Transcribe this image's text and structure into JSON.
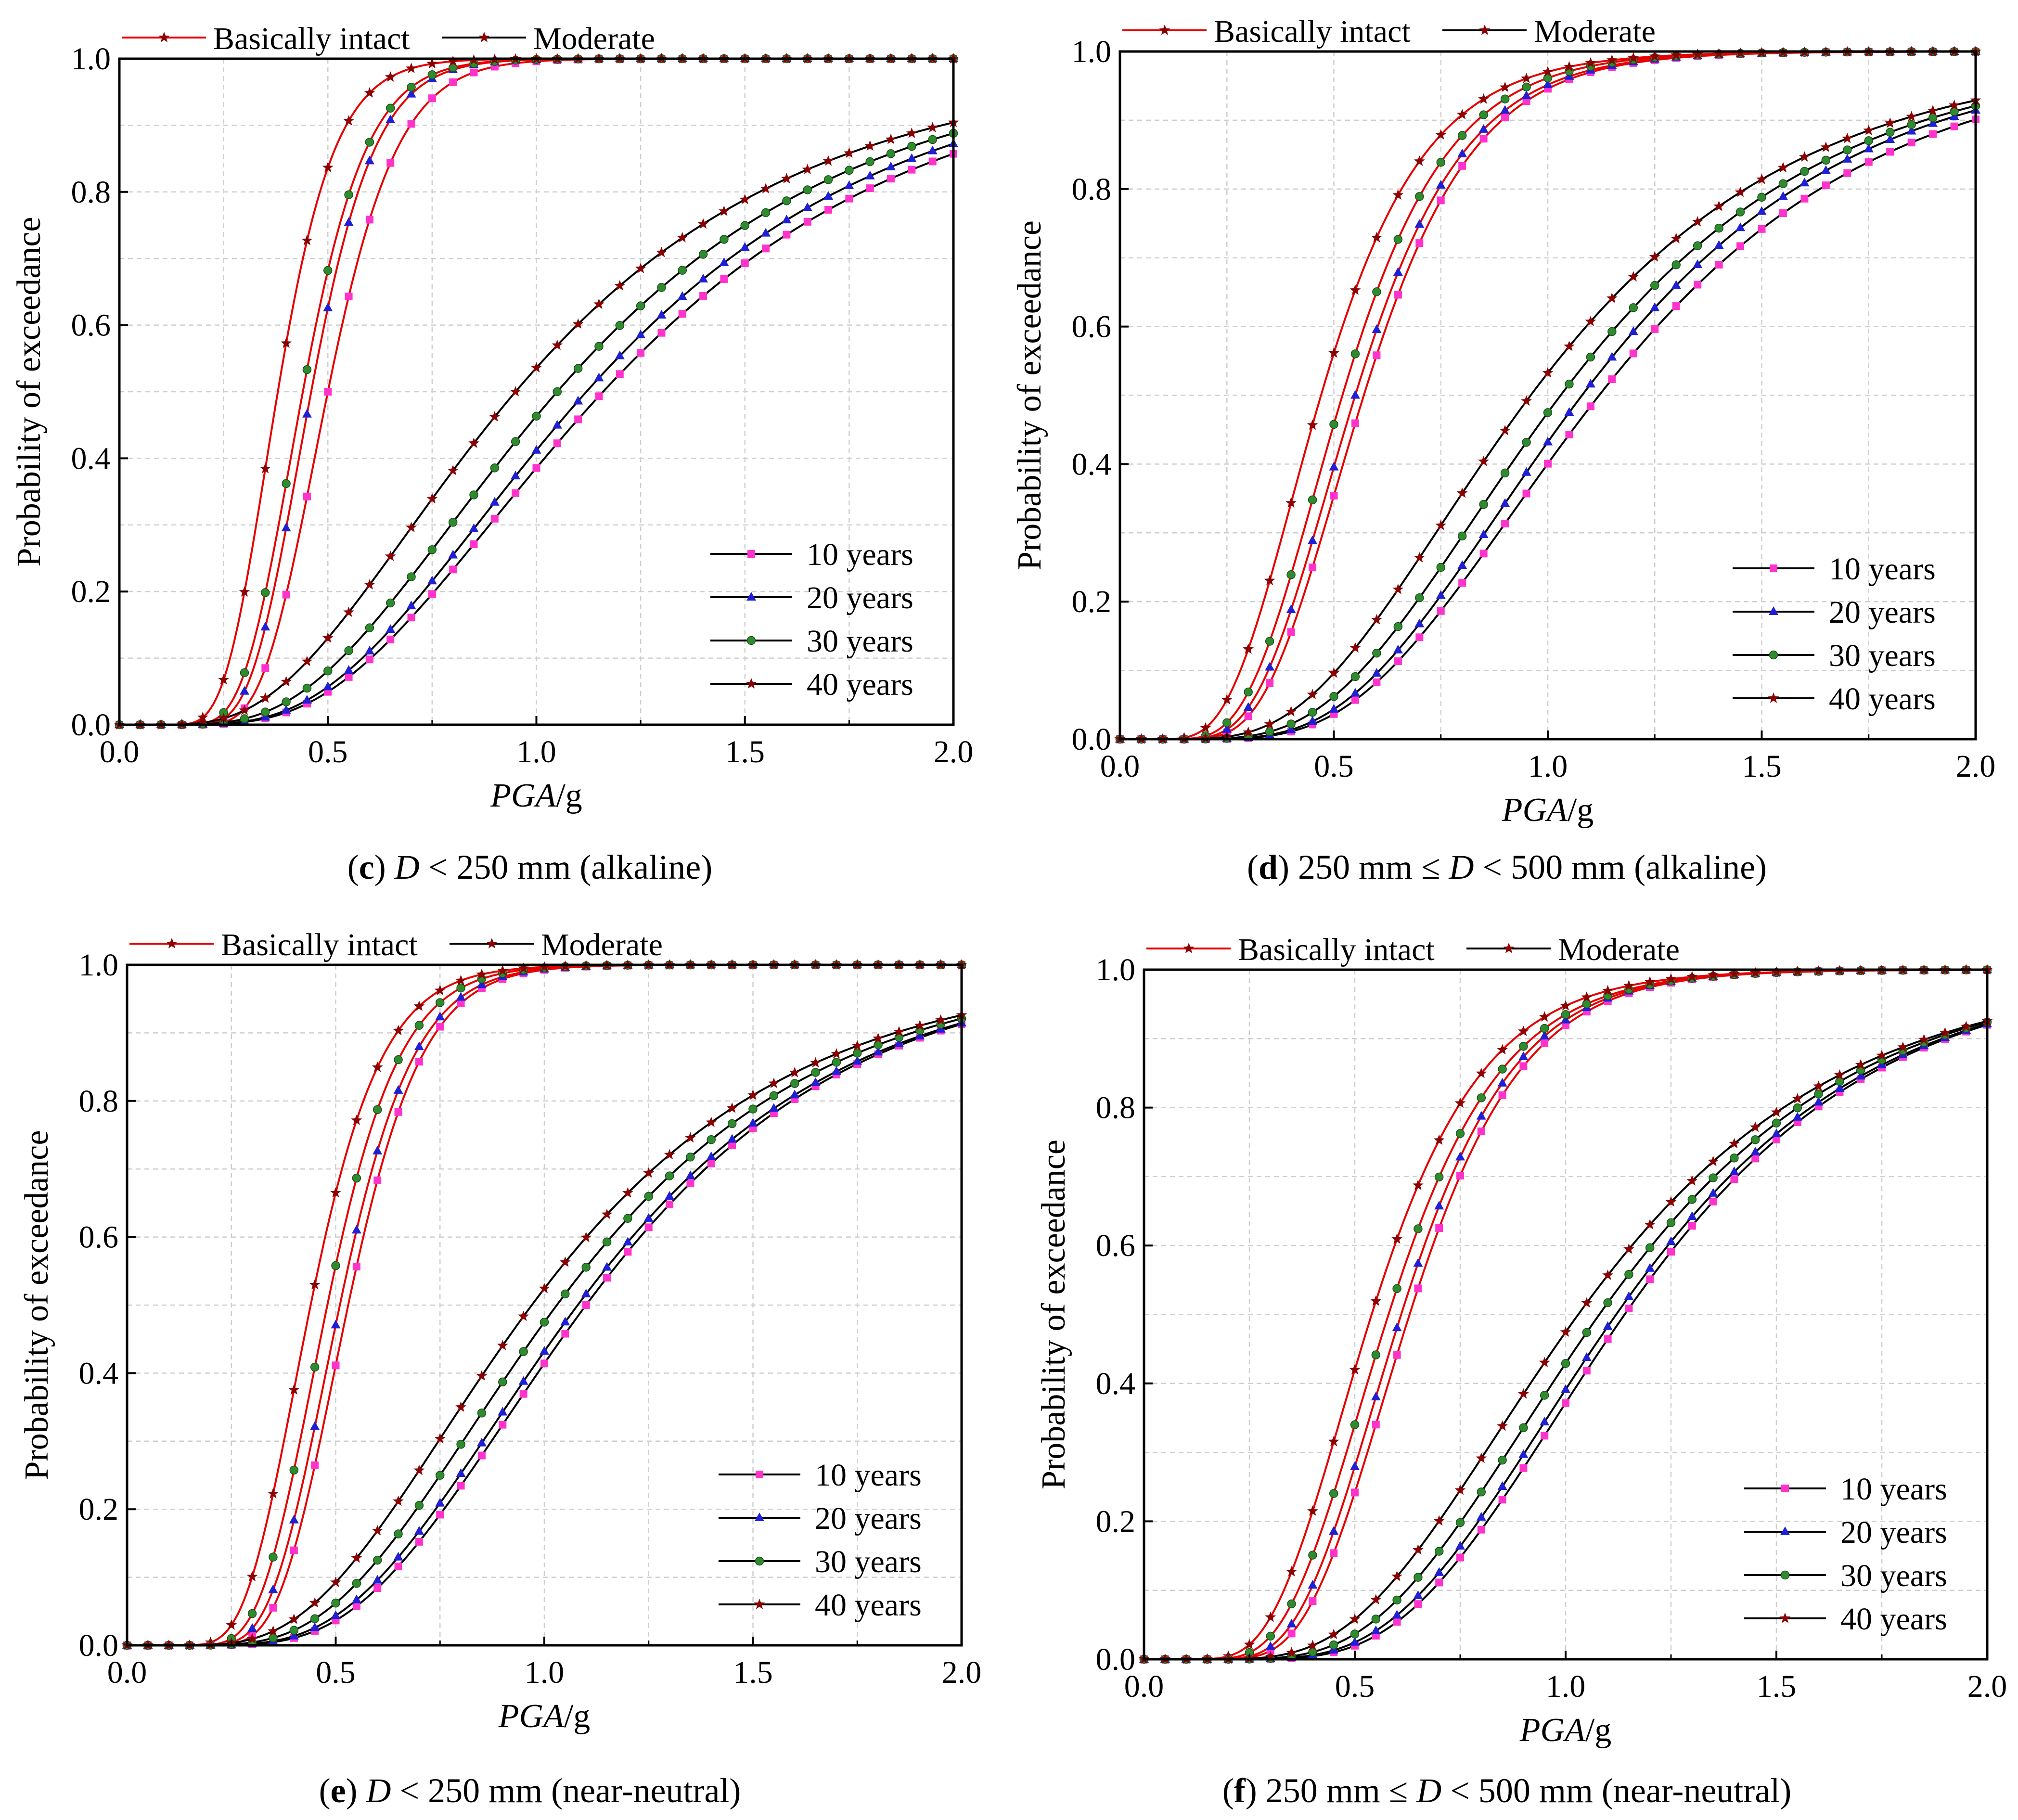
{
  "figure": {
    "series_styles": {
      "10 years": {
        "marker": "square",
        "color": "#ff33cc"
      },
      "20 years": {
        "marker": "triangle",
        "color": "#1f1fd6"
      },
      "30 years": {
        "marker": "circle",
        "color": "#2e8b2e"
      },
      "40 years": {
        "marker": "star",
        "color": "#8b0000"
      }
    },
    "state_line_colors": {
      "Basically intact": "#e60000",
      "Moderate": "#000000"
    }
  },
  "chart_data": [
    {
      "panel_letter": "c",
      "caption_text": "D < 250 mm (alkaline)",
      "type": "line",
      "xlabel": "PGA/g",
      "ylabel": "Probability of exceedance",
      "xlim": [
        0,
        2.0
      ],
      "ylim": [
        0,
        1.0
      ],
      "xticks": [
        "0.0",
        "0.5",
        "1.0",
        "1.5",
        "2.0"
      ],
      "yticks": [
        "0.0",
        "0.2",
        "0.4",
        "0.6",
        "0.8",
        "1.0"
      ],
      "grid": true,
      "top_legend": [
        "Basically intact",
        "Moderate"
      ],
      "legend": [
        "10 years",
        "20 years",
        "30 years",
        "40 years"
      ],
      "legend_position": "bottom-right",
      "series": [
        {
          "state": "Basically intact",
          "name": "10 years",
          "median": 0.5,
          "beta": 0.26
        },
        {
          "state": "Basically intact",
          "name": "20 years",
          "median": 0.46,
          "beta": 0.26
        },
        {
          "state": "Basically intact",
          "name": "30 years",
          "median": 0.44,
          "beta": 0.27
        },
        {
          "state": "Basically intact",
          "name": "40 years",
          "median": 0.38,
          "beta": 0.28
        },
        {
          "state": "Moderate",
          "name": "10 years",
          "median": 1.16,
          "beta": 0.51
        },
        {
          "state": "Moderate",
          "name": "20 years",
          "median": 1.12,
          "beta": 0.51
        },
        {
          "state": "Moderate",
          "name": "30 years",
          "median": 1.05,
          "beta": 0.53
        },
        {
          "state": "Moderate",
          "name": "40 years",
          "median": 0.95,
          "beta": 0.57
        }
      ]
    },
    {
      "panel_letter": "d",
      "caption_text": "250 mm ≤ D < 500 mm (alkaline)",
      "type": "line",
      "xlabel": "PGA/g",
      "ylabel": "Probability of exceedance",
      "xlim": [
        0,
        2.0
      ],
      "ylim": [
        0,
        1.0
      ],
      "xticks": [
        "0.0",
        "0.5",
        "1.0",
        "1.5",
        "2.0"
      ],
      "yticks": [
        "0.0",
        "0.2",
        "0.4",
        "0.6",
        "0.8",
        "1.0"
      ],
      "grid": true,
      "top_legend": [
        "Basically intact",
        "Moderate"
      ],
      "legend": [
        "10 years",
        "20 years",
        "30 years",
        "40 years"
      ],
      "legend_position": "bottom-right",
      "series": [
        {
          "state": "Basically intact",
          "name": "10 years",
          "median": 0.57,
          "beta": 0.35
        },
        {
          "state": "Basically intact",
          "name": "20 years",
          "median": 0.55,
          "beta": 0.36
        },
        {
          "state": "Basically intact",
          "name": "30 years",
          "median": 0.52,
          "beta": 0.37
        },
        {
          "state": "Basically intact",
          "name": "40 years",
          "median": 0.47,
          "beta": 0.4
        },
        {
          "state": "Moderate",
          "name": "10 years",
          "median": 1.12,
          "beta": 0.45
        },
        {
          "state": "Moderate",
          "name": "20 years",
          "median": 1.08,
          "beta": 0.45
        },
        {
          "state": "Moderate",
          "name": "30 years",
          "median": 1.03,
          "beta": 0.47
        },
        {
          "state": "Moderate",
          "name": "40 years",
          "median": 0.96,
          "beta": 0.5
        }
      ]
    },
    {
      "panel_letter": "e",
      "caption_text": "D < 250 mm (near-neutral)",
      "type": "line",
      "xlabel": "PGA/g",
      "ylabel": "Probability of exceedance",
      "xlim": [
        0,
        2.0
      ],
      "ylim": [
        0,
        1.0
      ],
      "xticks": [
        "0.0",
        "0.5",
        "1.0",
        "1.5",
        "2.0"
      ],
      "yticks": [
        "0.0",
        "0.2",
        "0.4",
        "0.6",
        "0.8",
        "1.0"
      ],
      "grid": true,
      "top_legend": [
        "Basically intact",
        "Moderate"
      ],
      "legend": [
        "10 years",
        "20 years",
        "30 years",
        "40 years"
      ],
      "legend_position": "bottom-right",
      "series": [
        {
          "state": "Basically intact",
          "name": "10 years",
          "median": 0.53,
          "beta": 0.26
        },
        {
          "state": "Basically intact",
          "name": "20 years",
          "median": 0.51,
          "beta": 0.27
        },
        {
          "state": "Basically intact",
          "name": "30 years",
          "median": 0.48,
          "beta": 0.28
        },
        {
          "state": "Basically intact",
          "name": "40 years",
          "median": 0.44,
          "beta": 0.3
        },
        {
          "state": "Moderate",
          "name": "10 years",
          "median": 1.1,
          "beta": 0.44
        },
        {
          "state": "Moderate",
          "name": "20 years",
          "median": 1.08,
          "beta": 0.45
        },
        {
          "state": "Moderate",
          "name": "30 years",
          "median": 1.03,
          "beta": 0.47
        },
        {
          "state": "Moderate",
          "name": "40 years",
          "median": 0.97,
          "beta": 0.5
        }
      ]
    },
    {
      "panel_letter": "f",
      "caption_text": "250 mm ≤ D < 500 mm (near-neutral)",
      "type": "line",
      "xlabel": "PGA/g",
      "ylabel": "Probability of exceedance",
      "xlim": [
        0,
        2.0
      ],
      "ylim": [
        0,
        1.0
      ],
      "xticks": [
        "0.0",
        "0.5",
        "1.0",
        "1.5",
        "2.0"
      ],
      "yticks": [
        "0.0",
        "0.2",
        "0.4",
        "0.6",
        "0.8",
        "1.0"
      ],
      "grid": true,
      "top_legend": [
        "Basically intact",
        "Moderate"
      ],
      "legend": [
        "10 years",
        "20 years",
        "30 years",
        "40 years"
      ],
      "legend_position": "bottom-right",
      "series": [
        {
          "state": "Basically intact",
          "name": "10 years",
          "median": 0.63,
          "beta": 0.33
        },
        {
          "state": "Basically intact",
          "name": "20 years",
          "median": 0.61,
          "beta": 0.34
        },
        {
          "state": "Basically intact",
          "name": "30 years",
          "median": 0.58,
          "beta": 0.36
        },
        {
          "state": "Basically intact",
          "name": "40 years",
          "median": 0.54,
          "beta": 0.38
        },
        {
          "state": "Moderate",
          "name": "10 years",
          "median": 1.14,
          "beta": 0.4
        },
        {
          "state": "Moderate",
          "name": "20 years",
          "median": 1.12,
          "beta": 0.41
        },
        {
          "state": "Moderate",
          "name": "30 years",
          "median": 1.08,
          "beta": 0.43
        },
        {
          "state": "Moderate",
          "name": "40 years",
          "median": 1.03,
          "beta": 0.46
        }
      ]
    }
  ]
}
